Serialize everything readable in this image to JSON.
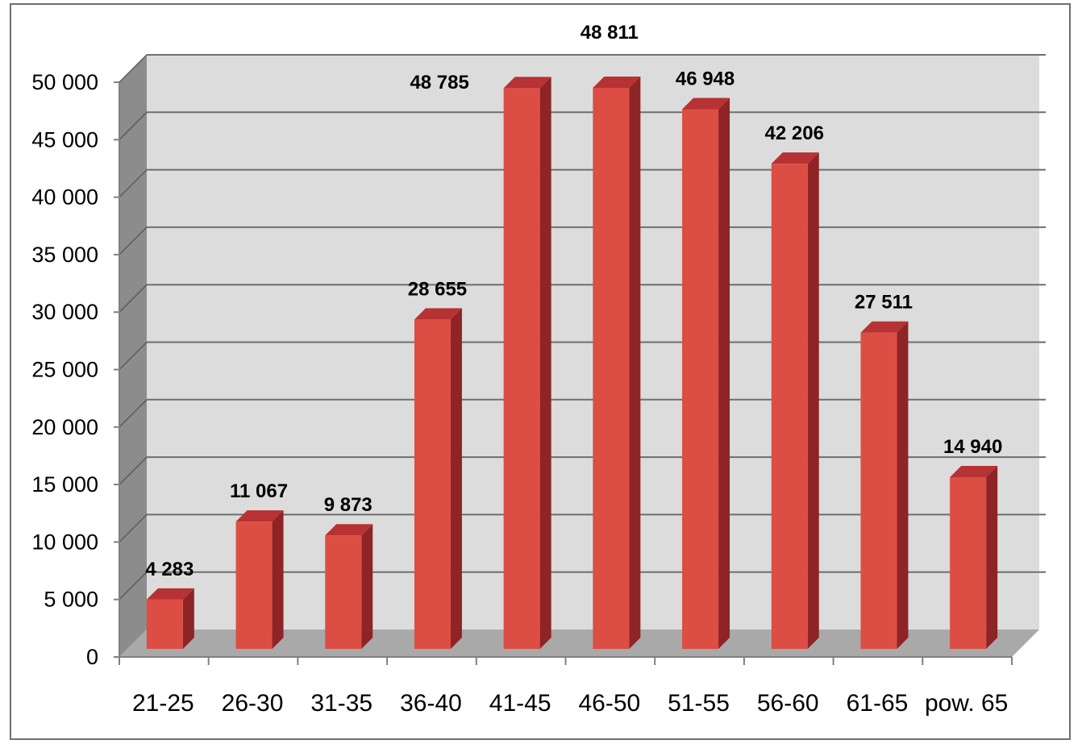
{
  "chart_data": {
    "type": "bar",
    "style": "3d-column",
    "categories": [
      "21-25",
      "26-30",
      "31-35",
      "36-40",
      "41-45",
      "46-50",
      "51-55",
      "56-60",
      "61-65",
      "pow. 65"
    ],
    "values": [
      4283,
      11067,
      9873,
      28655,
      48785,
      48811,
      46948,
      42206,
      27511,
      14940
    ],
    "value_labels": [
      "4 283",
      "11 067",
      "9 873",
      "28 655",
      "48 785",
      "48 811",
      "46 948",
      "42 206",
      "27 511",
      "14 940"
    ],
    "y_ticks": [
      0,
      5000,
      10000,
      15000,
      20000,
      25000,
      30000,
      35000,
      40000,
      45000,
      50000
    ],
    "y_tick_labels": [
      "0",
      "5 000",
      "10 000",
      "15 000",
      "20 000",
      "25 000",
      "30 000",
      "35 000",
      "40 000",
      "45 000",
      "50 000"
    ],
    "ylim": [
      0,
      50000
    ],
    "title": "",
    "xlabel": "",
    "ylabel": "",
    "grid": true,
    "legend": "none",
    "colors": {
      "bar_front": "#dc4e44",
      "bar_side": "#8e2426",
      "bar_top": "#b63233",
      "back_wall": "#dcdcdc",
      "side_wall": "#8c8c8c",
      "floor": "#a9a9a9",
      "gridline": "#6e6e6e"
    }
  }
}
